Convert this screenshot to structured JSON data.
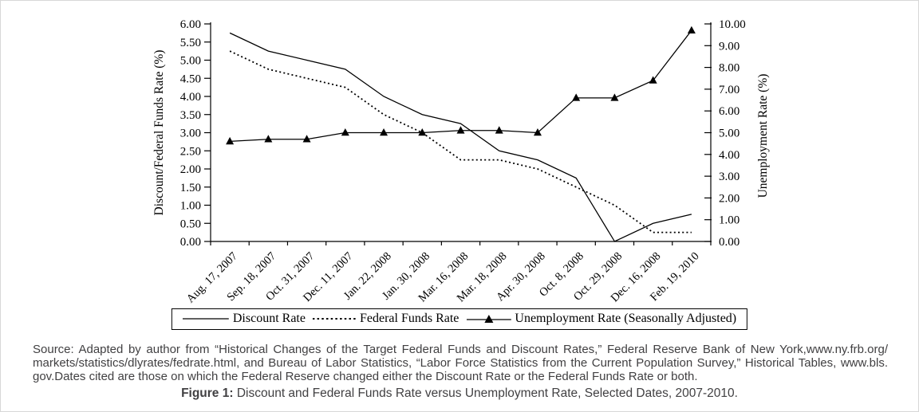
{
  "figure": {
    "legend": [
      {
        "label": "Discount Rate",
        "style": "solid"
      },
      {
        "label": "Federal Funds Rate",
        "style": "dotted"
      },
      {
        "label": "Unemployment Rate (Seasonally Adjusted)",
        "style": "triangle"
      }
    ],
    "source_lines": [
      "Source: Adapted by author from “Historical Changes of the Target Federal Funds and Discount Rates,” Federal Reserve Bank of New York,www.ny.frb.org/",
      "markets/statistics/dlyrates/fedrate.html, and Bureau of Labor Statistics, “Labor Force Statistics from the Current Population Survey,” Historical Tables, www.bls.",
      "gov.Dates cited are those on which the Federal Reserve changed either the Discount Rate or the Federal Funds Rate or both."
    ],
    "caption_prefix": "Figure 1:",
    "caption_text": " Discount and Federal Funds Rate versus Unemployment Rate, Selected Dates, 2007-2010."
  },
  "chart_data": {
    "type": "line",
    "categories": [
      "Aug. 17, 2007",
      "Sep. 18, 2007",
      "Oct. 31, 2007",
      "Dec. 11, 2007",
      "Jan. 22, 2008",
      "Jan. 30, 2008",
      "Mar. 16, 2008",
      "Mar. 18, 2008",
      "Apr. 30, 2008",
      "Oct. 8, 2008",
      "Oct. 29, 2008",
      "Dec. 16, 2008",
      "Feb. 19, 2010"
    ],
    "series": [
      {
        "name": "Discount Rate",
        "axis": "left",
        "line": "solid",
        "marker": "none",
        "values": [
          5.75,
          5.25,
          5.0,
          4.75,
          4.0,
          3.5,
          3.25,
          2.5,
          2.25,
          1.75,
          0.0,
          0.5,
          0.75
        ]
      },
      {
        "name": "Federal Funds Rate",
        "axis": "left",
        "line": "dotted",
        "marker": "none",
        "values": [
          5.25,
          4.75,
          4.5,
          4.25,
          3.5,
          3.0,
          2.25,
          2.25,
          2.0,
          1.5,
          1.0,
          0.25,
          0.25
        ]
      },
      {
        "name": "Unemployment Rate (Seasonally Adjusted)",
        "axis": "right",
        "line": "solid",
        "marker": "triangle",
        "values": [
          4.6,
          4.7,
          4.7,
          5.0,
          5.0,
          5.0,
          5.1,
          5.1,
          5.0,
          6.6,
          6.6,
          7.4,
          9.7
        ]
      }
    ],
    "left_axis": {
      "label": "Discount/Federal Funds Rate (%)",
      "min": 0,
      "max": 6,
      "step": 0.5
    },
    "right_axis": {
      "label": "Unemployment Rate (%)",
      "min": 0,
      "max": 10,
      "step": 1
    },
    "legend_position": "bottom",
    "grid": false,
    "line_color": "#000000"
  }
}
